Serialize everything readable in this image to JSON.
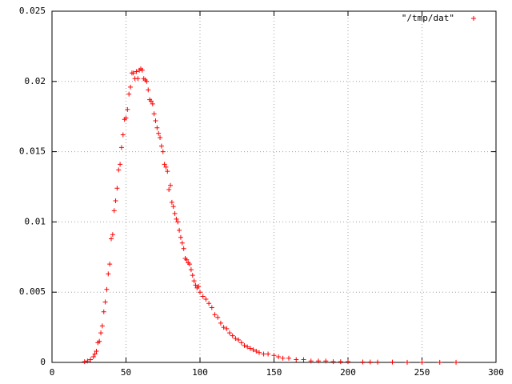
{
  "chart_data": {
    "type": "scatter",
    "x": [
      22,
      24,
      26,
      28,
      29,
      30,
      31,
      32,
      33,
      34,
      35,
      36,
      37,
      38,
      39,
      40,
      41,
      42,
      43,
      44,
      45,
      46,
      47,
      48,
      49,
      50,
      51,
      52,
      53,
      54,
      55,
      56,
      57,
      58,
      59,
      60,
      61,
      62,
      63,
      64,
      65,
      66,
      67,
      68,
      69,
      70,
      71,
      72,
      73,
      74,
      75,
      76,
      77,
      78,
      79,
      80,
      81,
      82,
      83,
      84,
      85,
      86,
      87,
      88,
      89,
      90,
      91,
      92,
      93,
      94,
      95,
      96,
      97,
      98,
      99,
      100,
      102,
      104,
      106,
      108,
      110,
      112,
      114,
      116,
      118,
      120,
      122,
      124,
      126,
      128,
      130,
      132,
      134,
      136,
      138,
      140,
      143,
      146,
      150,
      153,
      156,
      160,
      165,
      170,
      175,
      180,
      185,
      190,
      195,
      200,
      210,
      215,
      220,
      230,
      240,
      250,
      262,
      273
    ],
    "series": [
      {
        "name": "\"/tmp/dat\"",
        "color": "#ff0000",
        "values": [
          5e-05,
          0.0001,
          0.0002,
          0.0004,
          0.0006,
          0.0008,
          0.0014,
          0.0015,
          0.0021,
          0.0026,
          0.0036,
          0.0043,
          0.0052,
          0.0063,
          0.007,
          0.0088,
          0.0091,
          0.0108,
          0.0115,
          0.0124,
          0.0137,
          0.0141,
          0.0153,
          0.0162,
          0.0173,
          0.0174,
          0.018,
          0.0191,
          0.0196,
          0.0206,
          0.0206,
          0.0202,
          0.0207,
          0.0202,
          0.0208,
          0.0209,
          0.0208,
          0.0202,
          0.0201,
          0.02,
          0.0194,
          0.0187,
          0.0186,
          0.0184,
          0.0177,
          0.0172,
          0.0167,
          0.0163,
          0.016,
          0.0154,
          0.015,
          0.0141,
          0.0139,
          0.0136,
          0.0123,
          0.0126,
          0.0114,
          0.0111,
          0.0106,
          0.0102,
          0.01,
          0.0094,
          0.0089,
          0.0085,
          0.0081,
          0.0074,
          0.0073,
          0.0071,
          0.007,
          0.0066,
          0.0062,
          0.0058,
          0.0055,
          0.0053,
          0.0054,
          0.005,
          0.0047,
          0.0045,
          0.0042,
          0.0039,
          0.0034,
          0.0032,
          0.0028,
          0.0025,
          0.0024,
          0.0021,
          0.0019,
          0.0017,
          0.0016,
          0.0014,
          0.0012,
          0.0011,
          0.001,
          0.0009,
          0.0008,
          0.0007,
          0.0006,
          0.0006,
          0.0005,
          0.0004,
          0.0003,
          0.0003,
          0.0002,
          0.0002,
          0.0001,
          0.0001,
          0.0001,
          5e-05,
          5e-05,
          5e-05,
          3e-05,
          3e-05,
          2e-05,
          2e-05,
          1e-05,
          1e-05,
          1e-05,
          1e-05
        ]
      }
    ],
    "xlim": [
      0,
      300
    ],
    "xticks": [
      0,
      50,
      100,
      150,
      200,
      250,
      300
    ],
    "ylim": [
      0,
      0.025
    ],
    "yticks": [
      0,
      0.005,
      0.01,
      0.015,
      0.02,
      0.025
    ],
    "grid": true,
    "legend": "top-right"
  }
}
